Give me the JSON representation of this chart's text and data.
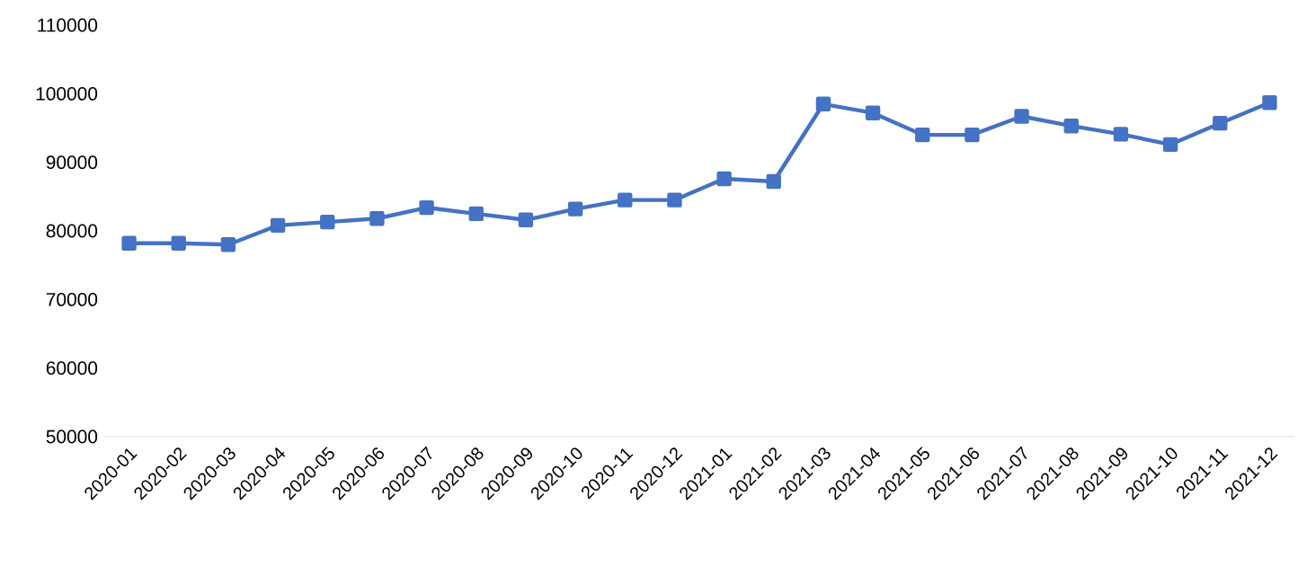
{
  "chart_data": {
    "type": "line",
    "categories": [
      "2020-01",
      "2020-02",
      "2020-03",
      "2020-04",
      "2020-05",
      "2020-06",
      "2020-07",
      "2020-08",
      "2020-09",
      "2020-10",
      "2020-11",
      "2020-12",
      "2021-01",
      "2021-02",
      "2021-03",
      "2021-04",
      "2021-05",
      "2021-06",
      "2021-07",
      "2021-08",
      "2021-09",
      "2021-10",
      "2021-11",
      "2021-12"
    ],
    "values": [
      78200,
      78200,
      78000,
      80800,
      81300,
      81800,
      83400,
      82500,
      81600,
      83200,
      84500,
      84500,
      87600,
      87200,
      98500,
      97200,
      94000,
      94000,
      96700,
      95300,
      94100,
      92600,
      95700,
      98700
    ],
    "color": "#4472c4",
    "marker": "square",
    "line_style": "solid",
    "ylim": [
      50000,
      110000
    ],
    "yticks": [
      50000,
      60000,
      70000,
      80000,
      90000,
      100000,
      110000
    ]
  }
}
